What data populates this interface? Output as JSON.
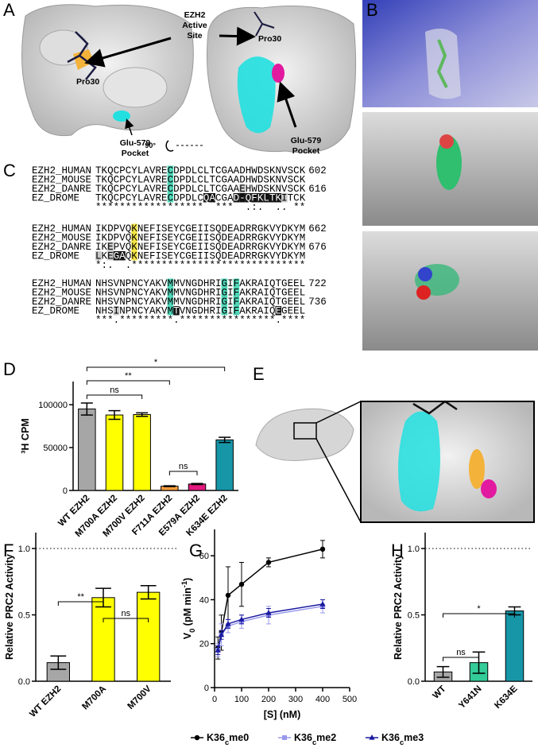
{
  "panel_labels": [
    "A",
    "B",
    "C",
    "D",
    "E",
    "F",
    "G",
    "H"
  ],
  "panel_a": {
    "active_site_label": [
      "EZH2",
      "Active",
      "Site"
    ],
    "residue_labels": [
      "Pro30",
      "Pro30"
    ],
    "pocket_labels": [
      [
        "Glu-579",
        "Pocket"
      ],
      [
        "Glu-579",
        "Pocket"
      ]
    ],
    "rotation_label": "90°"
  },
  "alignment": {
    "blocks": [
      {
        "rows": [
          {
            "name": "EZH2_HUMAN",
            "sequence": "TKQCPCYLAVRECDPDLCLTCGAADHWDSKNVSCK",
            "end": 602
          },
          {
            "name": "EZH2_MOUSE",
            "sequence": "TKQCPCYLAVRECDPDLCLTCGAADHWDSKNVSCK"
          },
          {
            "name": "EZH2_DANRE",
            "sequence": "TKQCPCYLAVRECDPDLCLTCGAAEHWDSKNVSCK",
            "end": 616
          },
          {
            "name": "EZ_DROME",
            "sequence": "TKQCPCYLAVRECDPDLCQACGAD-QFKLTKITCK"
          }
        ],
        "conservation": "******************  ***  .:.  .. **"
      },
      {
        "rows": [
          {
            "name": "EZH2_HUMAN",
            "sequence": "IKDPVQKNEFISEYCGEIISQDEADRRGKVYDKYM",
            "end": 662
          },
          {
            "name": "EZH2_MOUSE",
            "sequence": "IKDPVQKNEFISEYCGEIISQDEADRRGKVYDKYM"
          },
          {
            "name": "EZH2_DANRE",
            "sequence": "IKEPVQKNEFISEYCGEIISQDEADRRGKVYDKYM",
            "end": 676
          },
          {
            "name": "EZ_DROME",
            "sequence": "LKEGAQKNEFISEYCGEIISQDEADRRGKVYDKYM"
          }
        ],
        "conservation": "*:.  .*****************************"
      },
      {
        "rows": [
          {
            "name": "EZH2_HUMAN",
            "sequence": "NHSVNPNCYAKVMMVNGDHRIGIFAKRAIQTGEEL",
            "end": 722
          },
          {
            "name": "EZH2_MOUSE",
            "sequence": "NHSVNPNCYAKVMMVNGDHRIGIFAKRAIQTGEEL"
          },
          {
            "name": "EZH2_DANRE",
            "sequence": "NHSVNPNCYAKVMMVNGDHRIGIFAKRAIQTGEEL",
            "end": 736
          },
          {
            "name": "EZ_DROME",
            "sequence": "NHSINPNCYAKVMTVNGDHRIGIFAKRAIQEGEEL"
          }
        ],
        "conservation": "***.*********.****************.****"
      }
    ]
  },
  "chart_data": [
    {
      "type": "bar",
      "y_label": "³H CPM",
      "categories": [
        "WT EZH2",
        "M700A EZH2",
        "M700V EZH2",
        "F711A EZH2",
        "E579A EZH2",
        "K634E EZH2"
      ],
      "values": [
        95000,
        88000,
        88500,
        5000,
        7500,
        59000
      ],
      "errors": [
        7000,
        5000,
        2000,
        500,
        600,
        3000
      ],
      "colors": [
        "#a6a6a6",
        "#ffff00",
        "#ffff00",
        "#f39c3a",
        "#e2197f",
        "#1796a8"
      ],
      "ylim": [
        0,
        127000
      ],
      "yticks": [
        0,
        50000,
        100000
      ],
      "significance": [
        "*",
        "**",
        "ns",
        "ns"
      ]
    },
    {
      "type": "bar",
      "y_label": "Relative PRC2 Activity",
      "categories": [
        "WT EZH2",
        "M700A",
        "M700V"
      ],
      "values": [
        0.14,
        0.63,
        0.67
      ],
      "errors": [
        0.05,
        0.07,
        0.05
      ],
      "colors": [
        "#a6a6a6",
        "#ffff00",
        "#ffff00"
      ],
      "ylim": [
        0,
        1.12
      ],
      "yticks": [
        {
          "value": 0,
          "label": "0.0"
        },
        {
          "value": 0.5,
          "label": "0.5"
        },
        {
          "value": 1,
          "label": "1.0"
        }
      ],
      "reference_line": 1,
      "significance": [
        "**",
        "ns"
      ]
    },
    {
      "type": "line",
      "x_label": "[S] (nM)",
      "y_label": "V0 (pM min-1)",
      "x": [
        12.5,
        25,
        50,
        100,
        200,
        400
      ],
      "series": [
        {
          "name": "K36cme0",
          "color": "#000000",
          "marker": "circle",
          "values": [
            18,
            25,
            42,
            47,
            57,
            63
          ],
          "errors": [
            5,
            8,
            13,
            10,
            2,
            4
          ]
        },
        {
          "name": "K36cme2",
          "color": "#9999ee",
          "marker": "square",
          "values": [
            17,
            24,
            28,
            30,
            33,
            37
          ],
          "errors": [
            3,
            5,
            3,
            3,
            4,
            3
          ]
        },
        {
          "name": "K36cme3",
          "color": "#1a1aa0",
          "marker": "triangle",
          "values": [
            17,
            24,
            29,
            31,
            34,
            38
          ],
          "errors": [
            2,
            2,
            2,
            2,
            2,
            2
          ]
        }
      ],
      "xlim": [
        0,
        500
      ],
      "xticks": [
        0,
        100,
        200,
        300,
        400,
        500
      ],
      "ylim": [
        0,
        72
      ],
      "yticks": [
        0,
        20,
        40,
        60
      ],
      "legend": "bottom"
    },
    {
      "type": "bar",
      "y_label": "Relative PRC2 Activity",
      "categories": [
        "WT",
        "Y641N",
        "K634E"
      ],
      "values": [
        0.07,
        0.14,
        0.53
      ],
      "errors": [
        0.04,
        0.08,
        0.03
      ],
      "colors": [
        "#a6a6a6",
        "#33cc99",
        "#1796a8"
      ],
      "ylim": [
        0,
        1.12
      ],
      "yticks": [
        {
          "value": 0,
          "label": "0.0"
        },
        {
          "value": 0.5,
          "label": "0.5"
        },
        {
          "value": 1,
          "label": "1.0"
        }
      ],
      "reference_line": 1,
      "significance": [
        "ns",
        "*"
      ]
    }
  ]
}
